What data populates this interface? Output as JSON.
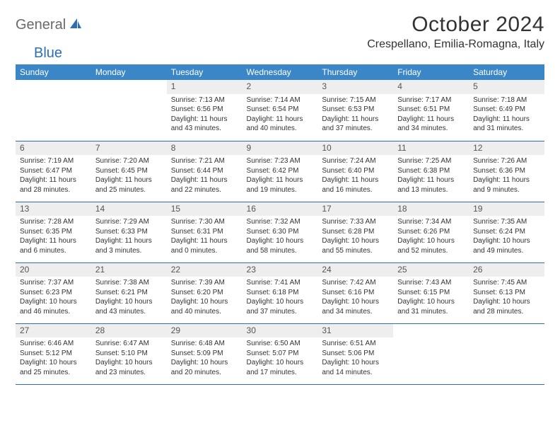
{
  "logo": {
    "part1": "General",
    "part2": "Blue"
  },
  "header": {
    "title": "October 2024",
    "location": "Crespellano, Emilia-Romagna, Italy"
  },
  "colors": {
    "header_bg": "#3b86c7",
    "border": "#2d6fb5",
    "daynum_bg": "#eeeeee",
    "text": "#333333",
    "logo_gray": "#6a6a6a",
    "logo_blue": "#2d6fb5"
  },
  "day_labels": [
    "Sunday",
    "Monday",
    "Tuesday",
    "Wednesday",
    "Thursday",
    "Friday",
    "Saturday"
  ],
  "weeks": [
    [
      null,
      null,
      {
        "n": "1",
        "sr": "Sunrise: 7:13 AM",
        "ss": "Sunset: 6:56 PM",
        "dl1": "Daylight: 11 hours",
        "dl2": "and 43 minutes."
      },
      {
        "n": "2",
        "sr": "Sunrise: 7:14 AM",
        "ss": "Sunset: 6:54 PM",
        "dl1": "Daylight: 11 hours",
        "dl2": "and 40 minutes."
      },
      {
        "n": "3",
        "sr": "Sunrise: 7:15 AM",
        "ss": "Sunset: 6:53 PM",
        "dl1": "Daylight: 11 hours",
        "dl2": "and 37 minutes."
      },
      {
        "n": "4",
        "sr": "Sunrise: 7:17 AM",
        "ss": "Sunset: 6:51 PM",
        "dl1": "Daylight: 11 hours",
        "dl2": "and 34 minutes."
      },
      {
        "n": "5",
        "sr": "Sunrise: 7:18 AM",
        "ss": "Sunset: 6:49 PM",
        "dl1": "Daylight: 11 hours",
        "dl2": "and 31 minutes."
      }
    ],
    [
      {
        "n": "6",
        "sr": "Sunrise: 7:19 AM",
        "ss": "Sunset: 6:47 PM",
        "dl1": "Daylight: 11 hours",
        "dl2": "and 28 minutes."
      },
      {
        "n": "7",
        "sr": "Sunrise: 7:20 AM",
        "ss": "Sunset: 6:45 PM",
        "dl1": "Daylight: 11 hours",
        "dl2": "and 25 minutes."
      },
      {
        "n": "8",
        "sr": "Sunrise: 7:21 AM",
        "ss": "Sunset: 6:44 PM",
        "dl1": "Daylight: 11 hours",
        "dl2": "and 22 minutes."
      },
      {
        "n": "9",
        "sr": "Sunrise: 7:23 AM",
        "ss": "Sunset: 6:42 PM",
        "dl1": "Daylight: 11 hours",
        "dl2": "and 19 minutes."
      },
      {
        "n": "10",
        "sr": "Sunrise: 7:24 AM",
        "ss": "Sunset: 6:40 PM",
        "dl1": "Daylight: 11 hours",
        "dl2": "and 16 minutes."
      },
      {
        "n": "11",
        "sr": "Sunrise: 7:25 AM",
        "ss": "Sunset: 6:38 PM",
        "dl1": "Daylight: 11 hours",
        "dl2": "and 13 minutes."
      },
      {
        "n": "12",
        "sr": "Sunrise: 7:26 AM",
        "ss": "Sunset: 6:36 PM",
        "dl1": "Daylight: 11 hours",
        "dl2": "and 9 minutes."
      }
    ],
    [
      {
        "n": "13",
        "sr": "Sunrise: 7:28 AM",
        "ss": "Sunset: 6:35 PM",
        "dl1": "Daylight: 11 hours",
        "dl2": "and 6 minutes."
      },
      {
        "n": "14",
        "sr": "Sunrise: 7:29 AM",
        "ss": "Sunset: 6:33 PM",
        "dl1": "Daylight: 11 hours",
        "dl2": "and 3 minutes."
      },
      {
        "n": "15",
        "sr": "Sunrise: 7:30 AM",
        "ss": "Sunset: 6:31 PM",
        "dl1": "Daylight: 11 hours",
        "dl2": "and 0 minutes."
      },
      {
        "n": "16",
        "sr": "Sunrise: 7:32 AM",
        "ss": "Sunset: 6:30 PM",
        "dl1": "Daylight: 10 hours",
        "dl2": "and 58 minutes."
      },
      {
        "n": "17",
        "sr": "Sunrise: 7:33 AM",
        "ss": "Sunset: 6:28 PM",
        "dl1": "Daylight: 10 hours",
        "dl2": "and 55 minutes."
      },
      {
        "n": "18",
        "sr": "Sunrise: 7:34 AM",
        "ss": "Sunset: 6:26 PM",
        "dl1": "Daylight: 10 hours",
        "dl2": "and 52 minutes."
      },
      {
        "n": "19",
        "sr": "Sunrise: 7:35 AM",
        "ss": "Sunset: 6:24 PM",
        "dl1": "Daylight: 10 hours",
        "dl2": "and 49 minutes."
      }
    ],
    [
      {
        "n": "20",
        "sr": "Sunrise: 7:37 AM",
        "ss": "Sunset: 6:23 PM",
        "dl1": "Daylight: 10 hours",
        "dl2": "and 46 minutes."
      },
      {
        "n": "21",
        "sr": "Sunrise: 7:38 AM",
        "ss": "Sunset: 6:21 PM",
        "dl1": "Daylight: 10 hours",
        "dl2": "and 43 minutes."
      },
      {
        "n": "22",
        "sr": "Sunrise: 7:39 AM",
        "ss": "Sunset: 6:20 PM",
        "dl1": "Daylight: 10 hours",
        "dl2": "and 40 minutes."
      },
      {
        "n": "23",
        "sr": "Sunrise: 7:41 AM",
        "ss": "Sunset: 6:18 PM",
        "dl1": "Daylight: 10 hours",
        "dl2": "and 37 minutes."
      },
      {
        "n": "24",
        "sr": "Sunrise: 7:42 AM",
        "ss": "Sunset: 6:16 PM",
        "dl1": "Daylight: 10 hours",
        "dl2": "and 34 minutes."
      },
      {
        "n": "25",
        "sr": "Sunrise: 7:43 AM",
        "ss": "Sunset: 6:15 PM",
        "dl1": "Daylight: 10 hours",
        "dl2": "and 31 minutes."
      },
      {
        "n": "26",
        "sr": "Sunrise: 7:45 AM",
        "ss": "Sunset: 6:13 PM",
        "dl1": "Daylight: 10 hours",
        "dl2": "and 28 minutes."
      }
    ],
    [
      {
        "n": "27",
        "sr": "Sunrise: 6:46 AM",
        "ss": "Sunset: 5:12 PM",
        "dl1": "Daylight: 10 hours",
        "dl2": "and 25 minutes."
      },
      {
        "n": "28",
        "sr": "Sunrise: 6:47 AM",
        "ss": "Sunset: 5:10 PM",
        "dl1": "Daylight: 10 hours",
        "dl2": "and 23 minutes."
      },
      {
        "n": "29",
        "sr": "Sunrise: 6:48 AM",
        "ss": "Sunset: 5:09 PM",
        "dl1": "Daylight: 10 hours",
        "dl2": "and 20 minutes."
      },
      {
        "n": "30",
        "sr": "Sunrise: 6:50 AM",
        "ss": "Sunset: 5:07 PM",
        "dl1": "Daylight: 10 hours",
        "dl2": "and 17 minutes."
      },
      {
        "n": "31",
        "sr": "Sunrise: 6:51 AM",
        "ss": "Sunset: 5:06 PM",
        "dl1": "Daylight: 10 hours",
        "dl2": "and 14 minutes."
      },
      null,
      null
    ]
  ]
}
